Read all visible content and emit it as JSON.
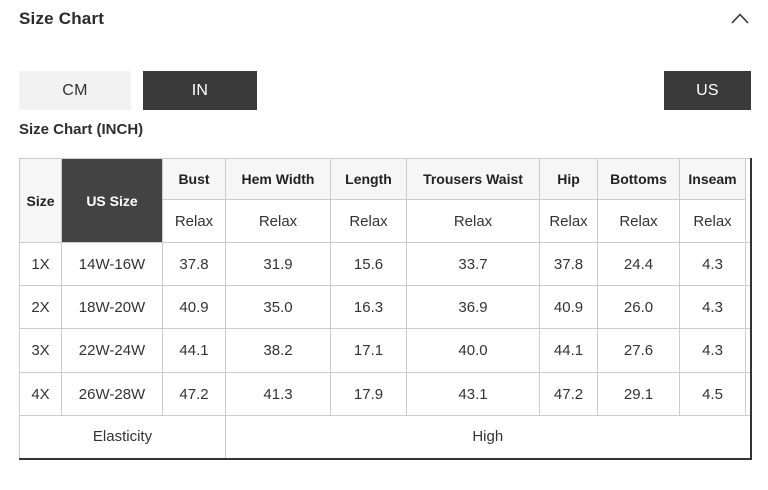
{
  "panel": {
    "title": "Size Chart",
    "collapse_icon": "chevron-up"
  },
  "unit_toggle": {
    "options": [
      {
        "label": "CM",
        "selected": false
      },
      {
        "label": "IN",
        "selected": true
      }
    ]
  },
  "region_toggle": {
    "label": "US",
    "selected": true
  },
  "table_title": "Size Chart (INCH)",
  "size_table": {
    "corner_columns": [
      "Size",
      "US Size"
    ],
    "measure_columns": [
      "Bust",
      "Hem Width",
      "Length",
      "Trousers Waist",
      "Hip",
      "Bottoms",
      "Inseam"
    ],
    "fit_row": [
      "Relax",
      "Relax",
      "Relax",
      "Relax",
      "Relax",
      "Relax",
      "Relax"
    ],
    "rows": [
      {
        "size": "1X",
        "us_size": "14W-16W",
        "values": [
          "37.8",
          "31.9",
          "15.6",
          "33.7",
          "37.8",
          "24.4",
          "4.3"
        ]
      },
      {
        "size": "2X",
        "us_size": "18W-20W",
        "values": [
          "40.9",
          "35.0",
          "16.3",
          "36.9",
          "40.9",
          "26.0",
          "4.3"
        ]
      },
      {
        "size": "3X",
        "us_size": "22W-24W",
        "values": [
          "44.1",
          "38.2",
          "17.1",
          "40.0",
          "44.1",
          "27.6",
          "4.3"
        ]
      },
      {
        "size": "4X",
        "us_size": "26W-28W",
        "values": [
          "47.2",
          "41.3",
          "17.9",
          "43.1",
          "47.2",
          "29.1",
          "4.5"
        ]
      }
    ],
    "footer": {
      "label": "Elasticity",
      "value": "High"
    }
  },
  "colors": {
    "accent_dark": "#3a3a3a",
    "us_size_cell_bg": "#434343",
    "inactive_button_bg": "#f2f2f2",
    "header_cell_bg": "#f6f6f6",
    "border_light": "#cccccc",
    "border_dark": "#333333"
  }
}
